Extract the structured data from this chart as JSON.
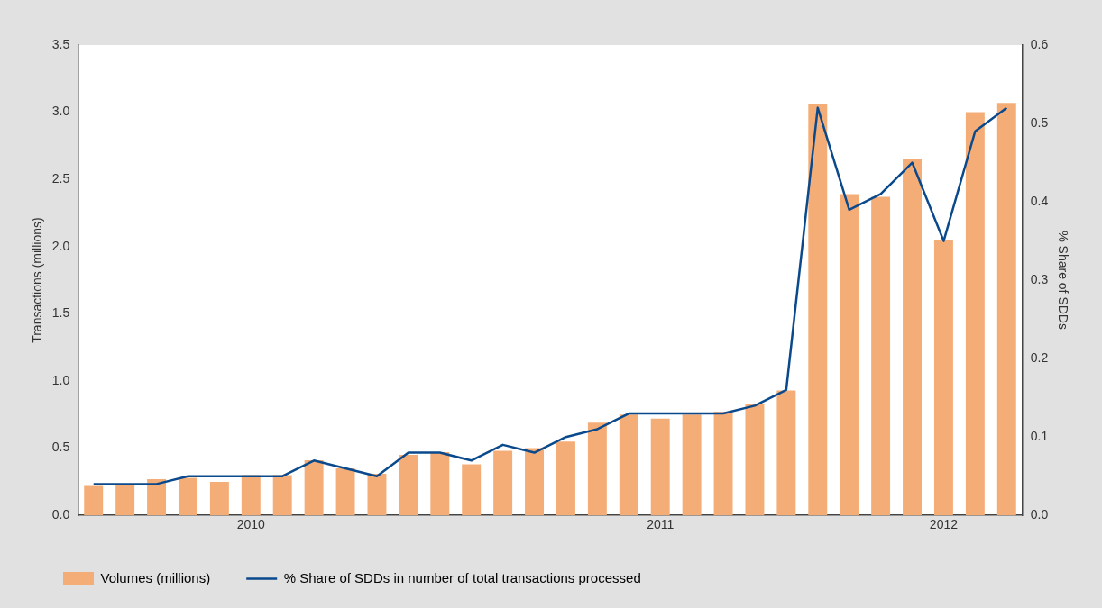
{
  "chart_data": {
    "type": "bar",
    "ylabel": "Transactions (millions)",
    "y2label": "% Share of SDDs",
    "categories": [
      null,
      null,
      null,
      null,
      null,
      "2010",
      null,
      null,
      null,
      null,
      null,
      null,
      null,
      null,
      null,
      null,
      null,
      null,
      "2011",
      null,
      null,
      null,
      null,
      null,
      null,
      null,
      null,
      "2012",
      null,
      null
    ],
    "series": [
      {
        "name": "Volumes (millions)",
        "color": "#f5ad78",
        "values": [
          0.22,
          0.23,
          0.27,
          0.28,
          0.25,
          0.3,
          0.3,
          0.41,
          0.35,
          0.31,
          0.45,
          0.47,
          0.38,
          0.48,
          0.5,
          0.55,
          0.69,
          0.75,
          0.72,
          0.75,
          0.77,
          0.83,
          0.93,
          3.06,
          2.39,
          2.37,
          2.65,
          2.05,
          3.0,
          3.07
        ]
      },
      {
        "name": "% Share of SDDs in number of total transactions processed",
        "type": "line",
        "axis": "y2",
        "color": "#0a4a8c",
        "values": [
          0.04,
          0.04,
          0.04,
          0.05,
          0.05,
          0.05,
          0.05,
          0.07,
          0.06,
          0.05,
          0.08,
          0.08,
          0.07,
          0.09,
          0.08,
          0.1,
          0.11,
          0.13,
          0.13,
          0.13,
          0.13,
          0.14,
          0.16,
          0.52,
          0.39,
          0.41,
          0.45,
          0.35,
          0.49,
          0.52
        ]
      }
    ],
    "ylim": [
      0,
      3.5
    ],
    "yticks": [
      {
        "value": 0,
        "label": "0.0"
      },
      {
        "value": 0.5,
        "label": "0.5"
      },
      {
        "value": 1,
        "label": "1.0"
      },
      {
        "value": 1.5,
        "label": "1.5"
      },
      {
        "value": 2,
        "label": "2.0"
      },
      {
        "value": 2.5,
        "label": "2.5"
      },
      {
        "value": 3,
        "label": "3.0"
      },
      {
        "value": 3.5,
        "label": "3.5"
      }
    ],
    "y2lim": [
      0,
      0.6
    ],
    "y2ticks": [
      {
        "value": 0,
        "label": "0.0"
      },
      0.1,
      0.2,
      0.3,
      0.4,
      0.5,
      0.6
    ],
    "grid": false,
    "legend": "bottom left",
    "marker": "none",
    "line_style": "solid"
  }
}
